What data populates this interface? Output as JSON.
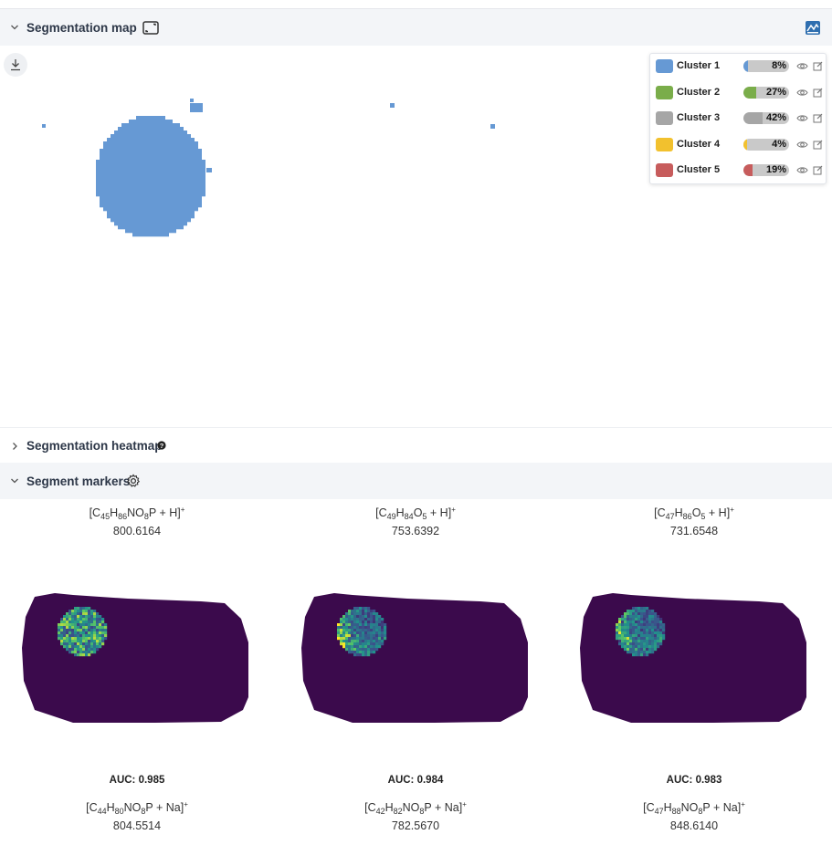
{
  "segmentation_map": {
    "title": "Segmentation map",
    "legend": [
      {
        "name": "Cluster 1",
        "percent": 8,
        "percent_label": "8%",
        "color": "#6699d4"
      },
      {
        "name": "Cluster 2",
        "percent": 27,
        "percent_label": "27%",
        "color": "#7aad4a"
      },
      {
        "name": "Cluster 3",
        "percent": 42,
        "percent_label": "42%",
        "color": "#a6a6a6"
      },
      {
        "name": "Cluster 4",
        "percent": 4,
        "percent_label": "4%",
        "color": "#f2c12e"
      },
      {
        "name": "Cluster 5",
        "percent": 19,
        "percent_label": "19%",
        "color": "#c75c5c"
      }
    ]
  },
  "segmentation_heatmap": {
    "title": "Segmentation heatmap"
  },
  "segment_markers": {
    "title": "Segment markers",
    "markers": [
      {
        "formula_parts": [
          "[C",
          "45",
          "H",
          "86",
          "NO",
          "8",
          "P + H]",
          "+"
        ],
        "mz": "800.6164",
        "auc": "AUC: 0.985"
      },
      {
        "formula_parts": [
          "[C",
          "49",
          "H",
          "84",
          "O",
          "5",
          "+ H]",
          "+"
        ],
        "mz": "753.6392",
        "auc": "AUC: 0.984"
      },
      {
        "formula_parts": [
          "[C",
          "47",
          "H",
          "86",
          "O",
          "5",
          "+ H]",
          "+"
        ],
        "mz": "731.6548",
        "auc": "AUC: 0.983"
      }
    ],
    "markers_next": [
      {
        "formula_parts": [
          "[C",
          "44",
          "H",
          "80",
          "NO",
          "8",
          "P + Na]",
          "+"
        ],
        "mz": "804.5514"
      },
      {
        "formula_parts": [
          "[C",
          "42",
          "H",
          "82",
          "NO",
          "8",
          "P + Na]",
          "+"
        ],
        "mz": "782.5670"
      },
      {
        "formula_parts": [
          "[C",
          "47",
          "H",
          "88",
          "NO",
          "8",
          "P + Na]",
          "+"
        ],
        "mz": "848.6140"
      }
    ]
  },
  "colors": {
    "header_bg": "#f3f5f8",
    "cluster_blob": "#6699d4",
    "ion_background": "#3b0a4c"
  },
  "icons": [
    "chevron-down-icon",
    "chevron-right-icon",
    "expand-icon",
    "chart-icon",
    "download-icon",
    "help-icon",
    "gear-icon",
    "eye-icon",
    "edit-icon"
  ]
}
